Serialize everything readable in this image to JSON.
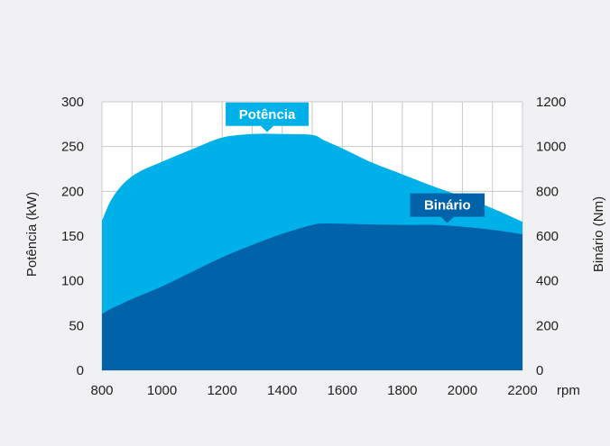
{
  "chart_data": {
    "type": "area",
    "x": [
      800,
      830,
      870,
      920,
      1000,
      1100,
      1200,
      1300,
      1400,
      1500,
      1540,
      1600,
      1700,
      1800,
      1900,
      2000,
      2100,
      2200
    ],
    "x_ticks": [
      "800",
      "1000",
      "1200",
      "1400",
      "1600",
      "1800",
      "2000",
      "2200"
    ],
    "xlabel": "rpm",
    "xlim": [
      800,
      2200
    ],
    "left_axis": {
      "label": "Potência (kW)",
      "ticks": [
        "0",
        "50",
        "100",
        "150",
        "200",
        "250",
        "300"
      ],
      "ylim": [
        0,
        300
      ]
    },
    "right_axis": {
      "label": "Binário (Nm)",
      "ticks": [
        "0",
        "200",
        "400",
        "600",
        "800",
        "1000",
        "1200"
      ],
      "ylim": [
        0,
        1200
      ]
    },
    "grid": true,
    "series": [
      {
        "name": "Potência",
        "axis": "left",
        "color": "#00b0e8",
        "values": [
          167,
          190,
          208,
          221,
          233,
          247,
          260,
          264,
          264,
          263,
          257,
          248,
          232,
          219,
          206,
          194,
          181,
          166
        ]
      },
      {
        "name": "Binário",
        "axis": "right",
        "color": "#0062a8",
        "values": [
          252,
          275,
          300,
          330,
          375,
          440,
          505,
          560,
          610,
          650,
          656,
          655,
          652,
          650,
          650,
          642,
          628,
          608
        ]
      }
    ],
    "callouts": [
      {
        "series": "Potência",
        "text": "Potência",
        "x": 1350,
        "y": 264
      },
      {
        "series": "Binário",
        "text": "Binário",
        "x": 1950,
        "y": 650
      }
    ]
  }
}
